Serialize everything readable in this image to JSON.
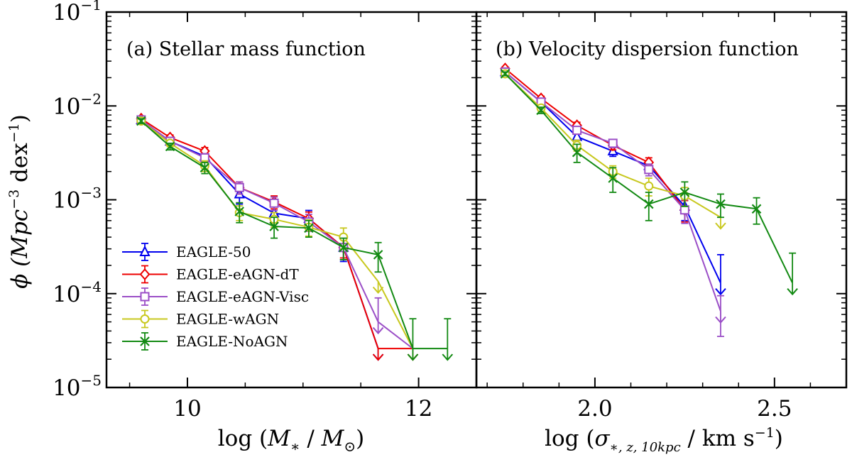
{
  "figure": {
    "ylabel": "ϕ (Mpc",
    "ylabel_sup1": "−3",
    "ylabel_mid": " dex",
    "ylabel_sup2": "−1",
    "ylabel_end": ")"
  },
  "y_ticks": [
    {
      "base": "10",
      "exp": "−1",
      "value": 0.1
    },
    {
      "base": "10",
      "exp": "−2",
      "value": 0.01
    },
    {
      "base": "10",
      "exp": "−3",
      "value": 0.001
    },
    {
      "base": "10",
      "exp": "−4",
      "value": 0.0001
    },
    {
      "base": "10",
      "exp": "−5",
      "value": 1e-05
    }
  ],
  "legend": {
    "location": "lower-left of panel (a)",
    "entries": [
      "EAGLE-50",
      "EAGLE-eAGN-dT",
      "EAGLE-eAGN-Visc",
      "EAGLE-wAGN",
      "EAGLE-NoAGN"
    ]
  },
  "chart_data": [
    {
      "type": "line",
      "id": "a",
      "title": "(a) Stellar mass function",
      "xlabel_parts": {
        "pre": "log (",
        "m1": "M",
        "s1": "∗",
        "mid": " / ",
        "m2": "M",
        "s2": "⊙",
        "post": ")"
      },
      "ylabel": "ϕ (Mpc−3 dex−1)",
      "yscale": "log",
      "xlim": [
        9.3,
        12.5
      ],
      "ylim": [
        1e-05,
        0.1
      ],
      "x_ticks": [
        {
          "value": 10,
          "label": "10"
        },
        {
          "value": 12,
          "label": "12"
        }
      ],
      "x_minor_step": 0.5,
      "series": [
        {
          "name": "EAGLE-50",
          "color": "#0000ee",
          "marker": "triangle",
          "offset": 0,
          "x": [
            9.6,
            9.85,
            10.15,
            10.45,
            10.75,
            11.05,
            11.35,
            11.65
          ],
          "y": [
            0.0071,
            0.0042,
            0.0029,
            0.00115,
            0.00072,
            0.00063,
            0.00031,
            2.6e-05
          ],
          "err": [
            0.0004,
            0.0003,
            0.0003,
            0.00025,
            0.00015,
            0.00014,
            9e-05,
            0.0
          ],
          "upper": [
            false,
            false,
            false,
            false,
            false,
            false,
            false,
            true
          ]
        },
        {
          "name": "EAGLE-eAGN-dT",
          "color": "#ee0000",
          "marker": "diamond",
          "offset": 0,
          "x": [
            9.6,
            9.85,
            10.15,
            10.45,
            10.75,
            11.05,
            11.35,
            11.65,
            11.95
          ],
          "y": [
            0.0073,
            0.0046,
            0.0033,
            0.00135,
            0.00095,
            0.00063,
            0.00031,
            2.6e-05,
            2.6e-05
          ],
          "err": [
            0.0004,
            0.0003,
            0.0003,
            0.0002,
            0.00015,
            0.00011,
            7e-05,
            0.0,
            0.0
          ],
          "upper": [
            false,
            false,
            false,
            false,
            false,
            false,
            false,
            true,
            true
          ]
        },
        {
          "name": "EAGLE-eAGN-Visc",
          "color": "#9b4fc7",
          "marker": "square",
          "offset": 0,
          "x": [
            9.6,
            9.85,
            10.15,
            10.45,
            10.75,
            11.05,
            11.35,
            11.65,
            11.95
          ],
          "y": [
            0.0071,
            0.0042,
            0.0028,
            0.00135,
            0.00092,
            0.00058,
            0.00031,
            5e-05,
            2.6e-05
          ],
          "err": [
            0.0004,
            0.0003,
            0.0003,
            0.0002,
            0.00015,
            0.00012,
            8e-05,
            4e-05,
            0.0
          ],
          "upper": [
            false,
            false,
            false,
            false,
            false,
            false,
            false,
            true,
            true
          ]
        },
        {
          "name": "EAGLE-wAGN",
          "color": "#c8c81e",
          "marker": "circle",
          "offset": 0,
          "x": [
            9.6,
            9.85,
            10.15,
            10.45,
            10.75,
            11.05,
            11.35,
            11.65,
            11.95
          ],
          "y": [
            0.0069,
            0.004,
            0.0023,
            0.00073,
            0.00062,
            0.00051,
            0.0004,
            0.000135,
            2.6e-05
          ],
          "err": [
            0.0004,
            0.0003,
            0.0003,
            0.00013,
            0.00011,
            0.0001,
            0.0001,
            0.0,
            0.0
          ],
          "upper": [
            false,
            false,
            false,
            false,
            false,
            false,
            false,
            true,
            true
          ]
        },
        {
          "name": "EAGLE-NoAGN",
          "color": "#138a13",
          "marker": "x",
          "offset": 0,
          "x": [
            9.6,
            9.85,
            10.15,
            10.45,
            10.75,
            11.05,
            11.35,
            11.65,
            11.95,
            12.25
          ],
          "y": [
            0.0069,
            0.0037,
            0.0022,
            0.00075,
            0.00052,
            0.0005,
            0.00031,
            0.00026,
            2.6e-05,
            2.6e-05
          ],
          "err": [
            0.0004,
            0.0003,
            0.0003,
            0.00018,
            0.00013,
            0.0001,
            8e-05,
            9e-05,
            2.8e-05,
            2.8e-05
          ],
          "upper": [
            false,
            false,
            false,
            false,
            false,
            false,
            false,
            false,
            true,
            true
          ]
        }
      ]
    },
    {
      "type": "line",
      "id": "b",
      "title": "(b) Velocity dispersion function",
      "xlabel_parts": {
        "pre": "log (",
        "m1": "σ",
        "s1": "∗, z, 10kpc",
        "mid": " / km s",
        "sup": "−1",
        "post": ")"
      },
      "ylabel": "ϕ (Mpc−3 dex−1)",
      "yscale": "log",
      "xlim": [
        1.67,
        2.7
      ],
      "ylim": [
        1e-05,
        0.1
      ],
      "x_ticks": [
        {
          "value": 2.0,
          "label": "2.0"
        },
        {
          "value": 2.5,
          "label": "2.5"
        }
      ],
      "x_minor_step": 0.1,
      "series": [
        {
          "name": "EAGLE-50",
          "color": "#0000ee",
          "marker": "triangle",
          "offset": 0,
          "x": [
            1.75,
            1.85,
            1.95,
            2.05,
            2.15,
            2.25,
            2.35
          ],
          "y": [
            0.023,
            0.011,
            0.0047,
            0.0033,
            0.0023,
            0.00085,
            0.00013
          ],
          "err": [
            0.001,
            0.0007,
            0.0004,
            0.0004,
            0.0003,
            0.00025,
            0.00013
          ],
          "upper": [
            false,
            false,
            false,
            false,
            false,
            false,
            true
          ]
        },
        {
          "name": "EAGLE-eAGN-dT",
          "color": "#ee0000",
          "marker": "diamond",
          "offset": 0,
          "x": [
            1.75,
            1.85,
            1.95,
            2.05,
            2.15,
            2.25
          ],
          "y": [
            0.025,
            0.012,
            0.0062,
            0.0038,
            0.0025,
            0.00078
          ],
          "err": [
            0.001,
            0.0007,
            0.0005,
            0.0004,
            0.0003,
            0.0002
          ],
          "upper": [
            false,
            false,
            false,
            false,
            false,
            false
          ]
        },
        {
          "name": "EAGLE-eAGN-Visc",
          "color": "#9b4fc7",
          "marker": "square",
          "offset": 0,
          "x": [
            1.75,
            1.85,
            1.95,
            2.05,
            2.15,
            2.25,
            2.35
          ],
          "y": [
            0.023,
            0.011,
            0.0055,
            0.004,
            0.0021,
            0.00078,
            6.5e-05
          ],
          "err": [
            0.001,
            0.0007,
            0.0005,
            0.0004,
            0.0003,
            0.00022,
            3e-05
          ],
          "upper": [
            false,
            false,
            false,
            false,
            false,
            false,
            true
          ]
        },
        {
          "name": "EAGLE-wAGN",
          "color": "#c8c81e",
          "marker": "circle",
          "offset": 0,
          "x": [
            1.75,
            1.85,
            1.95,
            2.05,
            2.15,
            2.25,
            2.35
          ],
          "y": [
            0.022,
            0.0095,
            0.0038,
            0.002,
            0.0014,
            0.0011,
            0.00065
          ],
          "err": [
            0.001,
            0.0007,
            0.0005,
            0.0003,
            0.0003,
            0.00025,
            0.0
          ],
          "upper": [
            false,
            false,
            false,
            false,
            false,
            false,
            true
          ]
        },
        {
          "name": "EAGLE-NoAGN",
          "color": "#138a13",
          "marker": "x",
          "offset": 0,
          "x": [
            1.75,
            1.85,
            1.95,
            2.05,
            2.15,
            2.25,
            2.35,
            2.45,
            2.55
          ],
          "y": [
            0.022,
            0.009,
            0.0032,
            0.0017,
            0.0009,
            0.0012,
            0.0009,
            0.0008,
            0.00013
          ],
          "err": [
            0.001,
            0.0007,
            0.0007,
            0.0005,
            0.0003,
            0.00035,
            0.00025,
            0.00025,
            0.00014
          ],
          "upper": [
            false,
            false,
            false,
            false,
            false,
            false,
            false,
            false,
            true
          ]
        }
      ]
    }
  ]
}
